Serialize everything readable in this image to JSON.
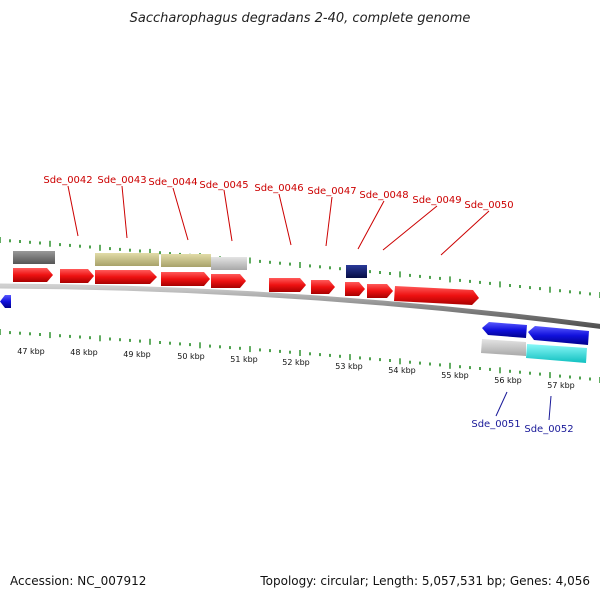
{
  "title": "Saccharophagus degradans 2-40, complete genome",
  "footer": {
    "accession": "Accession: NC_007912",
    "summary": "Topology: circular; Length: 5,057,531 bp; Genes: 4,056"
  },
  "colors": {
    "forward_gene": "#ee1111",
    "reverse_gene": "#1111dd",
    "tick": "#228b22",
    "backbone": "#8a8a8a",
    "forward_label": "#cc0000",
    "reverse_label": "#1a1a99",
    "feature_dark_gray": "#6f6f6f",
    "feature_khaki": "#c9c48c",
    "feature_light_gray": "#c6c6c6",
    "feature_navy": "#0d1a66",
    "feature_cyan": "#22e5e5"
  },
  "scale": {
    "unit": "kbp",
    "tick_labels": [
      "47 kbp",
      "48 kbp",
      "49 kbp",
      "50 kbp",
      "51 kbp",
      "52 kbp",
      "53 kbp",
      "54 kbp",
      "55 kbp",
      "56 kbp",
      "57 kbp"
    ]
  },
  "forward_genes": [
    "Sde_0042",
    "Sde_0043",
    "Sde_0044",
    "Sde_0045",
    "Sde_0046",
    "Sde_0047",
    "Sde_0048",
    "Sde_0049",
    "Sde_0050"
  ],
  "reverse_genes": [
    "Sde_0051",
    "Sde_0052"
  ]
}
